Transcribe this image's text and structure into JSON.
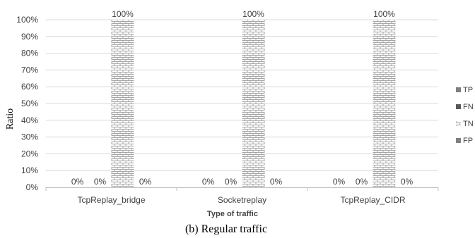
{
  "chart_data": {
    "type": "bar",
    "categories": [
      "TcpReplay_bridge",
      "Socketreplay",
      "TcpReplay_CIDR"
    ],
    "series": [
      {
        "name": "TP",
        "values": [
          0,
          0,
          0
        ],
        "labels": [
          "0%",
          "0%",
          "0%"
        ],
        "color": "#7f7f7f"
      },
      {
        "name": "FN",
        "values": [
          0,
          0,
          0
        ],
        "labels": [
          "0%",
          "0%",
          "0%"
        ],
        "color": "#595959"
      },
      {
        "name": "TN",
        "values": [
          100,
          100,
          100
        ],
        "labels": [
          "100%",
          "100%",
          "100%"
        ],
        "color": "#c8c8c8",
        "pattern": "brick"
      },
      {
        "name": "FP",
        "values": [
          0,
          0,
          0
        ],
        "labels": [
          "0%",
          "0%",
          "0%"
        ],
        "color": "#7f7f7f"
      }
    ],
    "yticks": [
      "0%",
      "10%",
      "20%",
      "30%",
      "40%",
      "50%",
      "60%",
      "70%",
      "80%",
      "90%",
      "100%"
    ],
    "ylim": [
      0,
      100
    ],
    "xlabel": "Type of traffic",
    "ylabel": "Ratio",
    "grid": true,
    "legend": "right"
  },
  "caption": "(b) Regular traffic"
}
